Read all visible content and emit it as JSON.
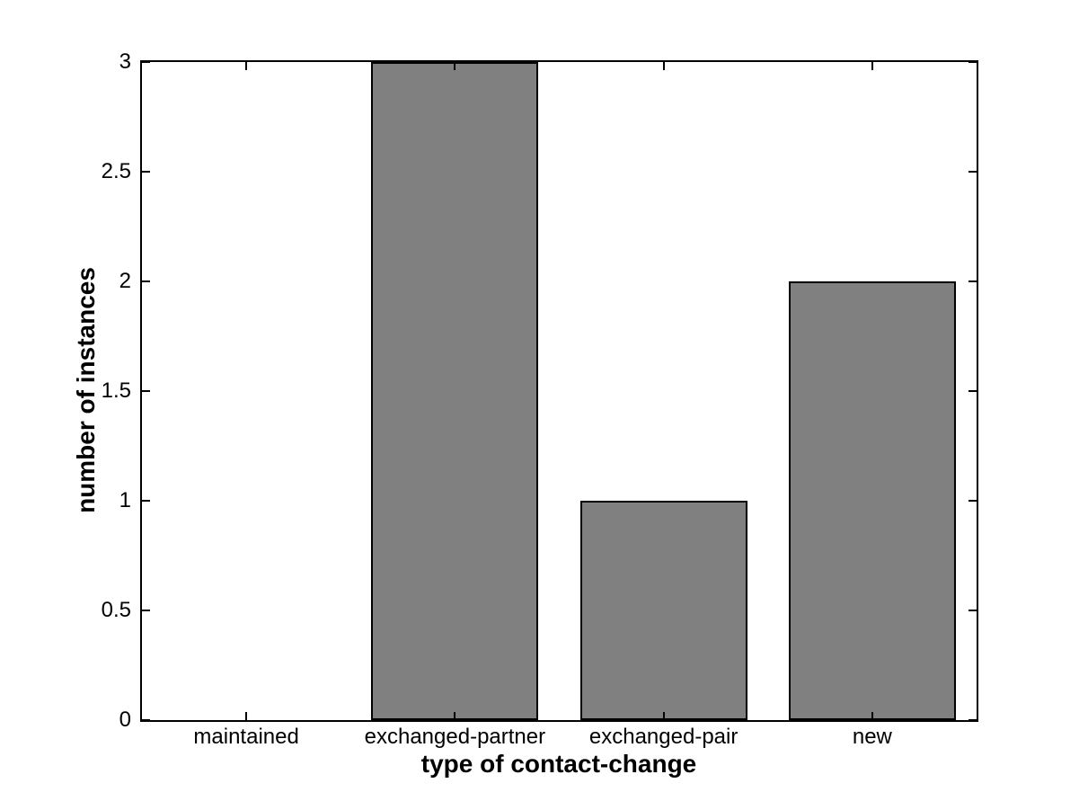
{
  "chart_data": {
    "type": "bar",
    "categories": [
      "maintained",
      "exchanged-partner",
      "exchanged-pair",
      "new"
    ],
    "values": [
      0,
      3,
      1,
      2
    ],
    "xlabel": "type of contact-change",
    "ylabel": "number of instances",
    "ylim": [
      0,
      3
    ],
    "yticks": [
      0,
      0.5,
      1,
      1.5,
      2,
      2.5,
      3
    ],
    "ytick_labels": [
      "0",
      "0.5",
      "1",
      "1.5",
      "2",
      "2.5",
      "3"
    ],
    "bar_width_fraction": 0.8,
    "bar_color": "#808080",
    "bar_edge_color": "#000000",
    "axis_color": "#000000",
    "background_color": "#ffffff",
    "grid": false,
    "ticks_mirrored": true,
    "tick_direction": "in"
  }
}
